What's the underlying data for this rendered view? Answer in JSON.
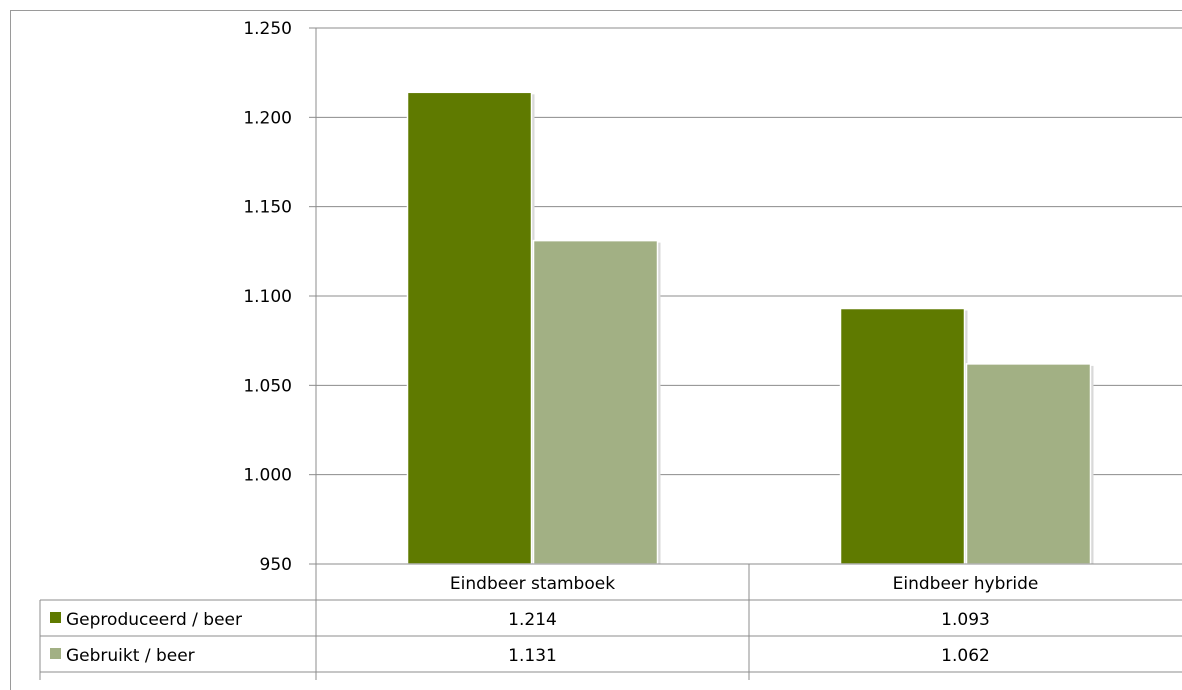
{
  "chart_data": {
    "type": "bar",
    "categories": [
      "Eindbeer stamboek",
      "Eindbeer hybride"
    ],
    "series": [
      {
        "name": "Geproduceerd / beer",
        "values": [
          1214,
          1093
        ],
        "labels": [
          "1.214",
          "1.093"
        ],
        "color": "#5f7a00"
      },
      {
        "name": "Gebruikt / beer",
        "values": [
          1131,
          1062
        ],
        "labels": [
          "1.131",
          "1.062"
        ],
        "color": "#a2b084"
      }
    ],
    "ylim": [
      950,
      1250
    ],
    "yticks": [
      950,
      1000,
      1050,
      1100,
      1150,
      1200,
      1250
    ],
    "ytick_labels": [
      "950",
      "1.000",
      "1.050",
      "1.100",
      "1.150",
      "1.200",
      "1.250"
    ],
    "grid": true,
    "legend": "data-table"
  }
}
